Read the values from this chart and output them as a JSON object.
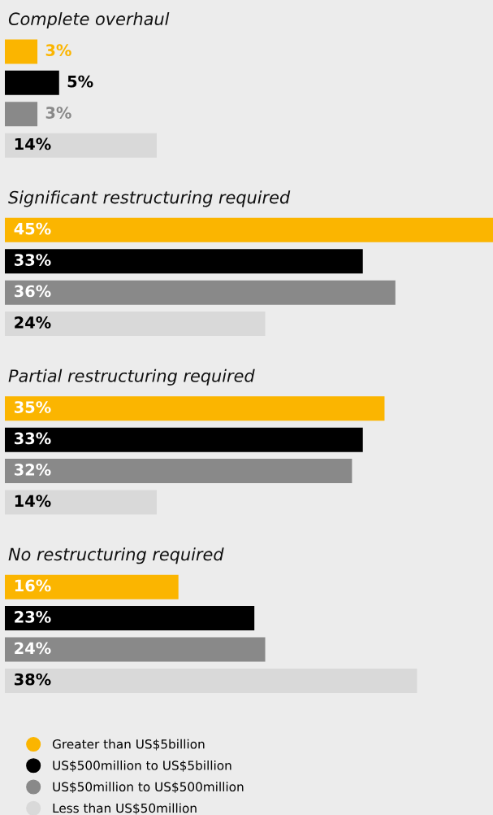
{
  "chart_data": {
    "type": "bar",
    "orientation": "horizontal",
    "categories": [
      "Complete overhaul",
      "Significant restructuring required",
      "Partial restructuring required",
      "No restructuring required"
    ],
    "series": [
      {
        "name": "Greater than US$5billion",
        "color": "#fbb500",
        "values": [
          3,
          45,
          35,
          16
        ],
        "value_labels": [
          "3%",
          "45%",
          "35%",
          "16%"
        ]
      },
      {
        "name": "US$500million to US$5billion",
        "color": "#000000",
        "values": [
          5,
          33,
          33,
          23
        ],
        "value_labels": [
          "5%",
          "33%",
          "33%",
          "23%"
        ]
      },
      {
        "name": "US$50million to US$500million",
        "color": "#898989",
        "values": [
          3,
          36,
          32,
          24
        ],
        "value_labels": [
          "3%",
          "36%",
          "32%",
          "24%"
        ]
      },
      {
        "name": "Less than US$50million",
        "color": "#d9d9d9",
        "values": [
          14,
          24,
          14,
          38
        ],
        "value_labels": [
          "14%",
          "24%",
          "14%",
          "38%"
        ]
      }
    ],
    "legend": "bottom"
  }
}
